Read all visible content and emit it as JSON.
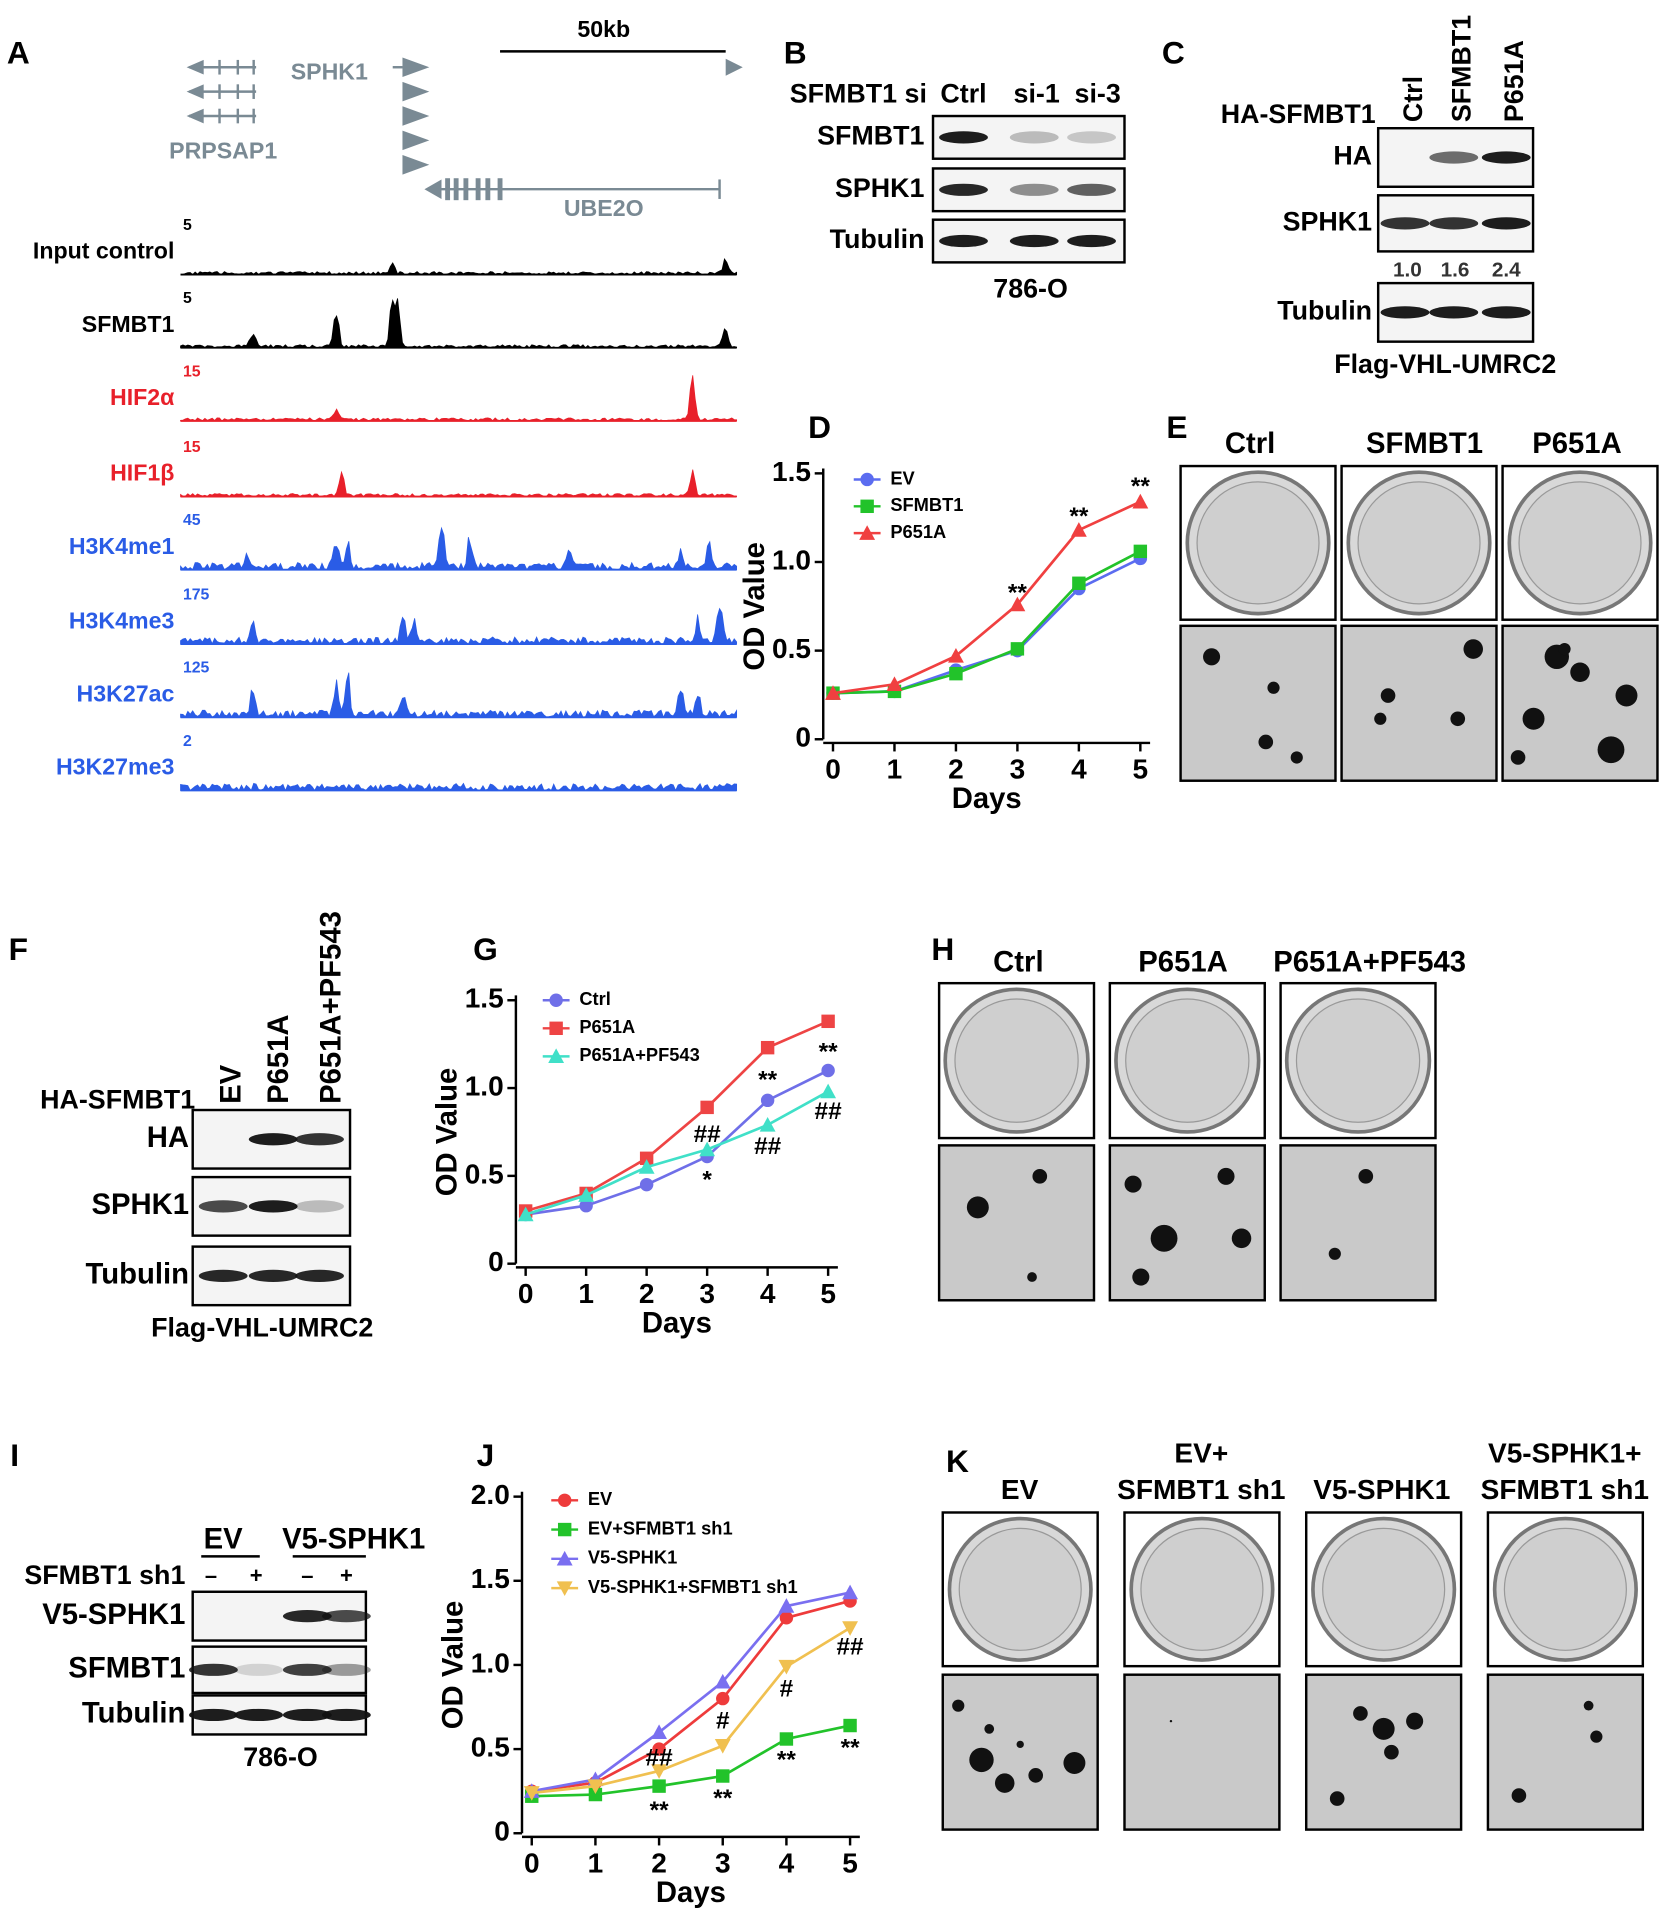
{
  "panel_a": {
    "label": "A",
    "scale": "50kb",
    "genes": [
      "SPHK1",
      "PRPSAP1",
      "UBE2O"
    ],
    "tracks": [
      {
        "name": "Input control",
        "max": 5,
        "color": "#000000"
      },
      {
        "name": "SFMBT1",
        "max": 5,
        "color": "#000000"
      },
      {
        "name": "HIF2α",
        "max": 15,
        "color": "#e8202a"
      },
      {
        "name": "HIF1β",
        "max": 15,
        "color": "#e8202a"
      },
      {
        "name": "H3K4me1",
        "max": 45,
        "color": "#2a5ce6"
      },
      {
        "name": "H3K4me3",
        "max": 175,
        "color": "#2a5ce6"
      },
      {
        "name": "H3K27ac",
        "max": 125,
        "color": "#2a5ce6"
      },
      {
        "name": "H3K27me3",
        "max": 2,
        "color": "#2a5ce6"
      }
    ]
  },
  "panel_b": {
    "label": "B",
    "row_header": "SFMBT1 si",
    "lanes": [
      "Ctrl",
      "si-1",
      "si-3"
    ],
    "rows": [
      "SFMBT1",
      "SPHK1",
      "Tubulin"
    ],
    "cell_line": "786-O"
  },
  "panel_c": {
    "label": "C",
    "row_header": "HA-SFMBT1",
    "lanes": [
      "Ctrl",
      "SFMBT1",
      "P651A"
    ],
    "rows": [
      "HA",
      "SPHK1",
      "Tubulin"
    ],
    "quantification": [
      "1.0",
      "1.6",
      "2.4"
    ],
    "cell_line": "Flag-VHL-UMRC2"
  },
  "panel_e": {
    "label": "E",
    "columns": [
      "Ctrl",
      "SFMBT1",
      "P651A"
    ]
  },
  "panel_f": {
    "label": "F",
    "row_header": "HA-SFMBT1",
    "lanes": [
      "EV",
      "P651A",
      "P651A+PF543"
    ],
    "rows": [
      "HA",
      "SPHK1",
      "Tubulin"
    ],
    "cell_line": "Flag-VHL-UMRC2"
  },
  "panel_h": {
    "label": "H",
    "columns": [
      "Ctrl",
      "P651A",
      "P651A+PF543"
    ]
  },
  "panel_i": {
    "label": "I",
    "groups": [
      "EV",
      "V5-SPHK1"
    ],
    "row_header": "SFMBT1 sh1",
    "treatment": [
      "–",
      "+",
      "–",
      "+"
    ],
    "rows": [
      "V5-SPHK1",
      "SFMBT1",
      "Tubulin"
    ],
    "cell_line": "786-O"
  },
  "panel_k": {
    "label": "K",
    "columns": [
      [
        "EV"
      ],
      [
        "EV+",
        "SFMBT1 sh1"
      ],
      [
        "V5-SPHK1"
      ],
      [
        "V5-SPHK1+",
        "SFMBT1 sh1"
      ]
    ]
  },
  "chart_data": [
    {
      "type": "line",
      "label": "D",
      "xlabel": "Days",
      "ylabel": "OD Value",
      "x": [
        0,
        1,
        2,
        3,
        4,
        5
      ],
      "xlim": [
        0,
        5
      ],
      "xticks": [
        0,
        1,
        2,
        3,
        4,
        5
      ],
      "ylim": [
        0,
        1.5
      ],
      "yticks": [
        0,
        0.5,
        {
          "value": 1,
          "label": "1.0"
        },
        1.5
      ],
      "legend": "upper left",
      "series": [
        {
          "name": "EV",
          "color": "#5b6cf0",
          "marker": "circle",
          "values": [
            0.26,
            0.27,
            0.39,
            0.5,
            0.85,
            1.02
          ]
        },
        {
          "name": "SFMBT1",
          "color": "#22c32a",
          "marker": "square",
          "values": [
            0.26,
            0.27,
            0.37,
            0.51,
            0.88,
            1.06
          ]
        },
        {
          "name": "P651A",
          "color": "#f04040",
          "marker": "triangle",
          "values": [
            0.26,
            0.31,
            0.47,
            0.76,
            1.18,
            1.34
          ]
        }
      ],
      "annotations": [
        {
          "text": "**",
          "x": 3,
          "y": 0.82
        },
        {
          "text": "**",
          "x": 4,
          "y": 1.25
        },
        {
          "text": "**",
          "x": 5,
          "y": 1.42
        }
      ]
    },
    {
      "type": "line",
      "label": "G",
      "xlabel": "Days",
      "ylabel": "OD Value",
      "x": [
        0,
        1,
        2,
        3,
        4,
        5
      ],
      "xlim": [
        0,
        5
      ],
      "xticks": [
        0,
        1,
        2,
        3,
        4,
        5
      ],
      "ylim": [
        0,
        1.5
      ],
      "yticks": [
        0,
        0.5,
        {
          "value": 1,
          "label": "1.0"
        },
        1.5
      ],
      "legend": "upper left",
      "series": [
        {
          "name": "Ctrl",
          "color": "#6f6fe8",
          "marker": "circle",
          "values": [
            0.28,
            0.33,
            0.45,
            0.61,
            0.93,
            1.1
          ]
        },
        {
          "name": "P651A",
          "color": "#ee4444",
          "marker": "square",
          "values": [
            0.3,
            0.4,
            0.6,
            0.89,
            1.23,
            1.38
          ]
        },
        {
          "name": "P651A+PF543",
          "color": "#40e0c8",
          "marker": "triangle",
          "values": [
            0.28,
            0.39,
            0.55,
            0.65,
            0.79,
            0.98
          ]
        }
      ],
      "annotations": [
        {
          "text": "##",
          "x": 3,
          "y": 0.73
        },
        {
          "text": "*",
          "x": 3,
          "y": 0.47
        },
        {
          "text": "**",
          "x": 4,
          "y": 1.04
        },
        {
          "text": "##",
          "x": 4,
          "y": 0.66
        },
        {
          "text": "**",
          "x": 5,
          "y": 1.2
        },
        {
          "text": "##",
          "x": 5,
          "y": 0.86
        }
      ]
    },
    {
      "type": "line",
      "label": "J",
      "xlabel": "Days",
      "ylabel": "OD Value",
      "x": [
        0,
        1,
        2,
        3,
        4,
        5
      ],
      "xlim": [
        0,
        5
      ],
      "xticks": [
        0,
        1,
        2,
        3,
        4,
        5
      ],
      "ylim": [
        0,
        2
      ],
      "yticks": [
        0,
        0.5,
        {
          "value": 1,
          "label": "1.0"
        },
        1.5,
        {
          "value": 2,
          "label": "2.0"
        }
      ],
      "legend": "upper left",
      "series": [
        {
          "name": "EV",
          "color": "#ee3b3b",
          "marker": "circle",
          "values": [
            0.25,
            0.3,
            0.5,
            0.8,
            1.28,
            1.38
          ]
        },
        {
          "name": "EV+SFMBT1 sh1",
          "color": "#22c32a",
          "marker": "square",
          "values": [
            0.22,
            0.23,
            0.28,
            0.34,
            0.56,
            0.64
          ]
        },
        {
          "name": "V5-SPHK1",
          "color": "#7a6ff0",
          "marker": "triangle",
          "values": [
            0.25,
            0.32,
            0.6,
            0.9,
            1.35,
            1.43
          ]
        },
        {
          "name": "V5-SPHK1+SFMBT1 sh1",
          "color": "#f0c050",
          "marker": "triangle-down",
          "values": [
            0.24,
            0.28,
            0.37,
            0.52,
            0.99,
            1.22
          ]
        }
      ],
      "annotations": [
        {
          "text": "##",
          "x": 2,
          "y": 0.44
        },
        {
          "text": "**",
          "x": 2,
          "y": 0.13
        },
        {
          "text": "#",
          "x": 3,
          "y": 0.66
        },
        {
          "text": "**",
          "x": 3,
          "y": 0.2
        },
        {
          "text": "#",
          "x": 4,
          "y": 0.85
        },
        {
          "text": "**",
          "x": 4,
          "y": 0.43
        },
        {
          "text": "##",
          "x": 5,
          "y": 1.1
        },
        {
          "text": "**",
          "x": 5,
          "y": 0.5
        }
      ]
    }
  ]
}
